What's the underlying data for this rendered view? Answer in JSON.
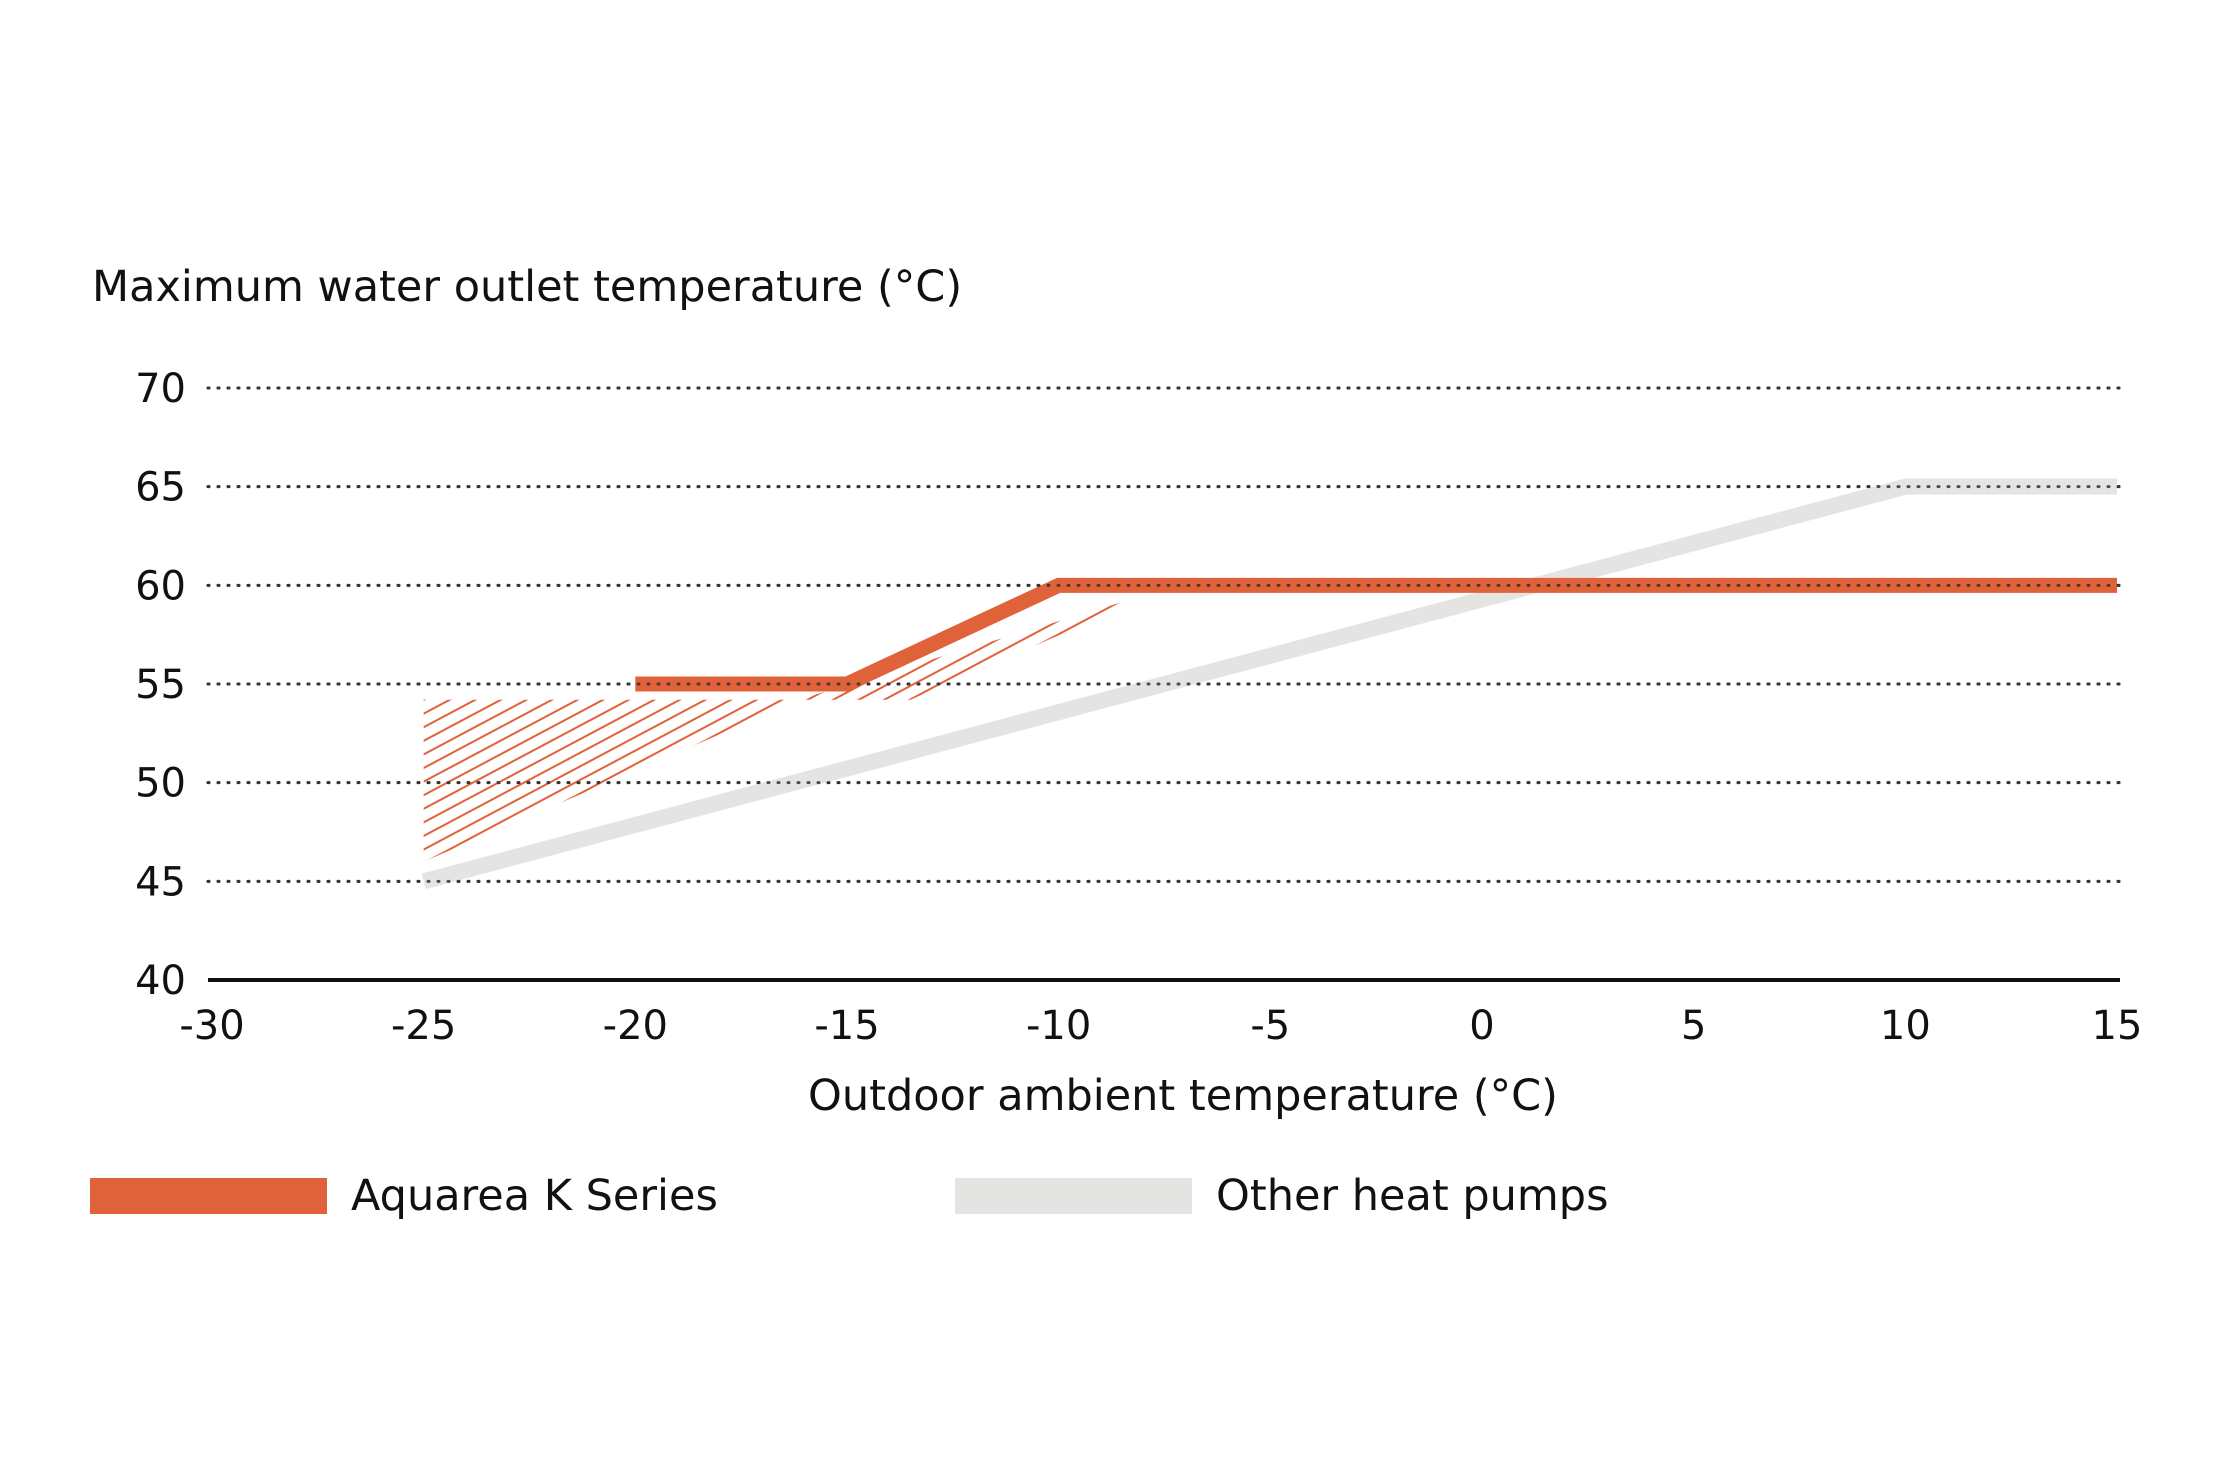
{
  "chart_data": {
    "type": "line",
    "xlabel": "Outdoor ambient temperature (°C)",
    "ylabel": "Maximum water outlet temperature (°C)",
    "xlim": [
      -30,
      15
    ],
    "ylim": [
      40,
      70
    ],
    "x_ticks": [
      -30,
      -25,
      -20,
      -15,
      -10,
      -5,
      0,
      5,
      10,
      15
    ],
    "y_ticks": [
      40,
      45,
      50,
      55,
      60,
      65,
      70
    ],
    "x_tick_labels": [
      "-30",
      "-25",
      "-20",
      "-15",
      "-10",
      "-5",
      "0",
      "5",
      "10",
      "15"
    ],
    "y_tick_labels": [
      "40",
      "45",
      "50",
      "55",
      "60",
      "65",
      "70"
    ],
    "grid": "horizontal dotted",
    "legend_position": "bottom",
    "series": [
      {
        "name": "Aquarea K Series",
        "color": "#e0623a",
        "points": [
          [
            -20,
            55
          ],
          [
            -15,
            55
          ],
          [
            -10,
            60
          ],
          [
            15,
            60
          ]
        ]
      },
      {
        "name": "Other heat pumps",
        "color": "#e4e4e2",
        "points": [
          [
            -25,
            45
          ],
          [
            10,
            65
          ],
          [
            15,
            65
          ]
        ]
      }
    ],
    "hatched_region": {
      "color": "#e0623a",
      "points": [
        [
          -25,
          46
        ],
        [
          -25,
          54.2
        ],
        [
          -13.5,
          54.2
        ],
        [
          -7.5,
          59.8
        ],
        [
          -16,
          54.3
        ]
      ]
    }
  }
}
